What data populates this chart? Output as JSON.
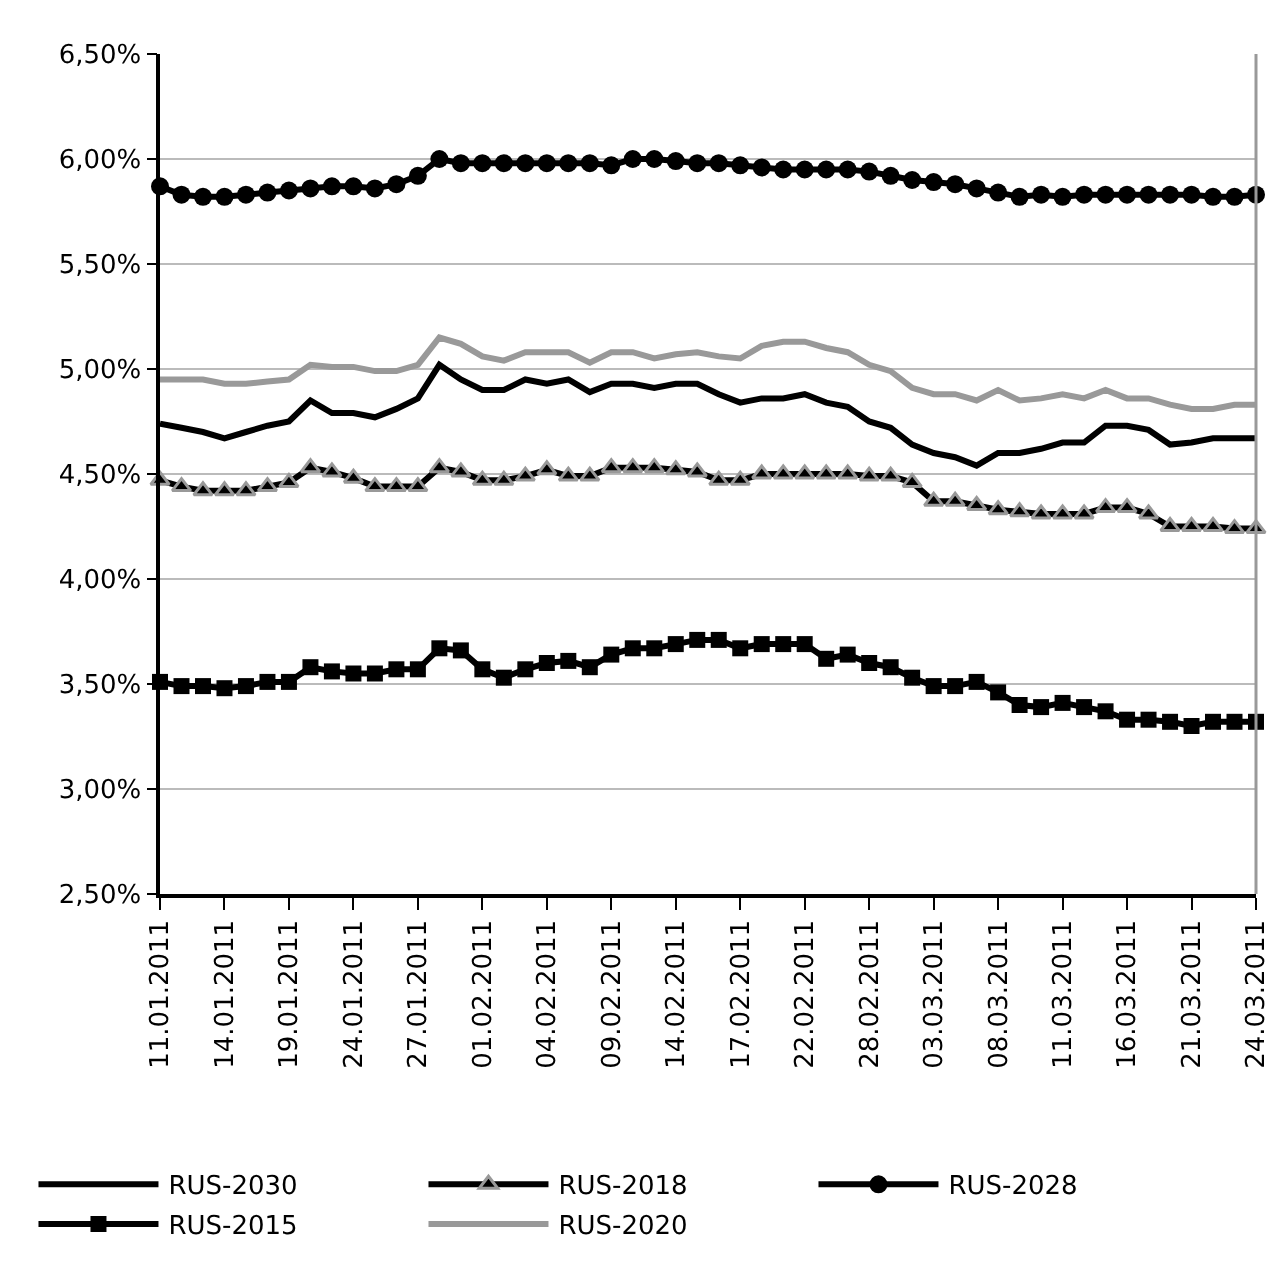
{
  "chart_data": {
    "type": "line",
    "categories": [
      "11.01.2011",
      null,
      null,
      "14.01.2011",
      null,
      null,
      "19.01.2011",
      null,
      null,
      "24.01.2011",
      null,
      null,
      "27.01.2011",
      null,
      null,
      "01.02.2011",
      null,
      null,
      "04.02.2011",
      null,
      null,
      "09.02.2011",
      null,
      null,
      "14.02.2011",
      null,
      null,
      "17.02.2011",
      null,
      null,
      "22.02.2011",
      null,
      null,
      "28.02.2011",
      null,
      null,
      "03.03.2011",
      null,
      null,
      "08.03.2011",
      null,
      null,
      "11.03.2011",
      null,
      null,
      "16.03.2011",
      null,
      null,
      "21.03.2011",
      null,
      null,
      "24.03.2011"
    ],
    "series": [
      {
        "name": "RUS-2030",
        "color": "#000000",
        "marker": "none",
        "values": [
          4.74,
          4.72,
          4.7,
          4.67,
          4.7,
          4.73,
          4.75,
          4.85,
          4.79,
          4.79,
          4.77,
          4.81,
          4.86,
          5.02,
          4.95,
          4.9,
          4.9,
          4.95,
          4.93,
          4.95,
          4.89,
          4.93,
          4.93,
          4.91,
          4.93,
          4.93,
          4.88,
          4.84,
          4.86,
          4.86,
          4.88,
          4.84,
          4.82,
          4.75,
          4.72,
          4.64,
          4.6,
          4.58,
          4.54,
          4.6,
          4.6,
          4.62,
          4.65,
          4.65,
          4.73,
          4.73,
          4.71,
          4.64,
          4.65,
          4.67,
          4.67,
          4.67
        ]
      },
      {
        "name": "RUS-2018",
        "color": "#000000",
        "marker": "triangle",
        "values": [
          4.47,
          4.44,
          4.42,
          4.42,
          4.42,
          4.44,
          4.46,
          4.53,
          4.51,
          4.48,
          4.44,
          4.44,
          4.44,
          4.53,
          4.51,
          4.47,
          4.47,
          4.49,
          4.52,
          4.49,
          4.49,
          4.53,
          4.53,
          4.53,
          4.52,
          4.51,
          4.47,
          4.47,
          4.5,
          4.5,
          4.5,
          4.5,
          4.5,
          4.49,
          4.49,
          4.46,
          4.37,
          4.37,
          4.35,
          4.33,
          4.32,
          4.31,
          4.31,
          4.31,
          4.34,
          4.34,
          4.31,
          4.25,
          4.25,
          4.25,
          4.24,
          4.24
        ]
      },
      {
        "name": "RUS-2028",
        "color": "#000000",
        "marker": "circle",
        "values": [
          5.87,
          5.83,
          5.82,
          5.82,
          5.83,
          5.84,
          5.85,
          5.86,
          5.87,
          5.87,
          5.86,
          5.88,
          5.92,
          6.0,
          5.98,
          5.98,
          5.98,
          5.98,
          5.98,
          5.98,
          5.98,
          5.97,
          6.0,
          6.0,
          5.99,
          5.98,
          5.98,
          5.97,
          5.96,
          5.95,
          5.95,
          5.95,
          5.95,
          5.94,
          5.92,
          5.9,
          5.89,
          5.88,
          5.86,
          5.84,
          5.82,
          5.83,
          5.82,
          5.83,
          5.83,
          5.83,
          5.83,
          5.83,
          5.83,
          5.82,
          5.82,
          5.83
        ]
      },
      {
        "name": "RUS-2015",
        "color": "#000000",
        "marker": "square",
        "values": [
          3.51,
          3.49,
          3.49,
          3.48,
          3.49,
          3.51,
          3.51,
          3.58,
          3.56,
          3.55,
          3.55,
          3.57,
          3.57,
          3.67,
          3.66,
          3.57,
          3.53,
          3.57,
          3.6,
          3.61,
          3.58,
          3.64,
          3.67,
          3.67,
          3.69,
          3.71,
          3.71,
          3.67,
          3.69,
          3.69,
          3.69,
          3.62,
          3.64,
          3.6,
          3.58,
          3.53,
          3.49,
          3.49,
          3.51,
          3.46,
          3.4,
          3.39,
          3.41,
          3.39,
          3.37,
          3.33,
          3.33,
          3.32,
          3.3,
          3.32,
          3.32,
          3.32
        ]
      },
      {
        "name": "RUS-2020",
        "color": "#999999",
        "marker": "none",
        "values": [
          4.95,
          4.95,
          4.95,
          4.93,
          4.93,
          4.94,
          4.95,
          5.02,
          5.01,
          5.01,
          4.99,
          4.99,
          5.02,
          5.15,
          5.12,
          5.06,
          5.04,
          5.08,
          5.08,
          5.08,
          5.03,
          5.08,
          5.08,
          5.05,
          5.07,
          5.08,
          5.06,
          5.05,
          5.11,
          5.13,
          5.13,
          5.1,
          5.08,
          5.02,
          4.99,
          4.91,
          4.88,
          4.88,
          4.85,
          4.9,
          4.85,
          4.86,
          4.88,
          4.86,
          4.9,
          4.86,
          4.86,
          4.83,
          4.81,
          4.81,
          4.83,
          4.83
        ]
      }
    ],
    "ylim": [
      2.5,
      6.5
    ],
    "yticks": [
      {
        "value": 2.5,
        "label": "2,50%"
      },
      {
        "value": 3,
        "label": "3,00%"
      },
      {
        "value": 3.5,
        "label": "3,50%"
      },
      {
        "value": 4,
        "label": "4,00%"
      },
      {
        "value": 4.5,
        "label": "4,50%"
      },
      {
        "value": 5,
        "label": "5,00%"
      },
      {
        "value": 5.5,
        "label": "5,50%"
      },
      {
        "value": 6,
        "label": "6,00%"
      },
      {
        "value": 6.5,
        "label": "6,50%"
      }
    ],
    "grid": "y",
    "legend": "bottom",
    "line_style": "solid"
  }
}
